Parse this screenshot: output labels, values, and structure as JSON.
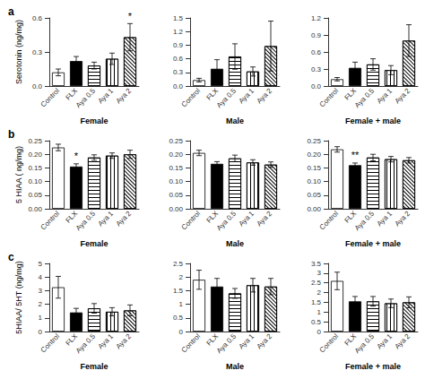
{
  "chart_data": [
    {
      "type": "bar",
      "title": "a",
      "xlabel": "Female",
      "ylabel": "Serotonin (ng/mg)",
      "categories": [
        "Control",
        "FLX",
        "Aya 0.5",
        "Aya 1",
        "Aya 2"
      ],
      "values": [
        0.12,
        0.22,
        0.18,
        0.24,
        0.43
      ],
      "errors": [
        0.03,
        0.04,
        0.03,
        0.05,
        0.12
      ],
      "colors": [
        "white",
        "black",
        "white",
        "white",
        "white"
      ],
      "ylim": [
        0.0,
        0.6
      ],
      "yticks": [
        {
          "value": 0.0,
          "label": "0.0"
        },
        0.3,
        0.6
      ],
      "grid": false,
      "annotations": [
        {
          "text": "*",
          "category": "Aya 2"
        }
      ]
    },
    {
      "type": "bar",
      "xlabel": "Male",
      "categories": [
        "Control",
        "FLX",
        "Aya 0.5",
        "Aya 1",
        "Aya 2"
      ],
      "values": [
        0.13,
        0.38,
        0.65,
        0.32,
        0.88
      ],
      "errors": [
        0.04,
        0.2,
        0.28,
        0.1,
        0.55
      ],
      "colors": [
        "white",
        "black",
        "white",
        "white",
        "white"
      ],
      "ylim": [
        0.0,
        1.5
      ],
      "yticks": [
        {
          "value": 0.0,
          "label": "0.0"
        },
        0.3,
        0.6,
        0.9,
        1.2,
        1.5
      ],
      "grid": false
    },
    {
      "type": "bar",
      "xlabel": "Female + male",
      "categories": [
        "Control",
        "FLX",
        "Aya 0.5",
        "Aya 1",
        "Aya 2"
      ],
      "values": [
        0.12,
        0.32,
        0.38,
        0.28,
        0.8
      ],
      "errors": [
        0.03,
        0.1,
        0.1,
        0.08,
        0.28
      ],
      "colors": [
        "white",
        "black",
        "white",
        "white",
        "white"
      ],
      "ylim": [
        0.0,
        1.2
      ],
      "yticks": [
        {
          "value": 0.0,
          "label": "0.0"
        },
        0.3,
        0.6,
        0.9,
        1.2
      ],
      "grid": false
    },
    {
      "type": "bar",
      "title": "b",
      "xlabel": "Female",
      "ylabel": "5 HIAA ( ng/mg)",
      "categories": [
        "Control",
        "FLX",
        "Aya 0.5",
        "Aya 1",
        "Aya 2"
      ],
      "values": [
        0.225,
        0.155,
        0.188,
        0.195,
        0.2
      ],
      "errors": [
        0.012,
        0.01,
        0.01,
        0.01,
        0.015
      ],
      "colors": [
        "white",
        "black",
        "white",
        "white",
        "white"
      ],
      "ylim": [
        0.0,
        0.25
      ],
      "yticks": [
        {
          "value": 0.0,
          "label": "0.00"
        },
        0.05,
        {
          "value": 0.1,
          "label": "0.10"
        },
        0.15,
        {
          "value": 0.2,
          "label": "0.20"
        },
        0.25
      ],
      "grid": false,
      "annotations": [
        {
          "text": "*",
          "category": "FLX"
        }
      ]
    },
    {
      "type": "bar",
      "xlabel": "Male",
      "categories": [
        "Control",
        "FLX",
        "Aya 0.5",
        "Aya 1",
        "Aya 2"
      ],
      "values": [
        0.205,
        0.165,
        0.185,
        0.17,
        0.162
      ],
      "errors": [
        0.01,
        0.008,
        0.012,
        0.01,
        0.01
      ],
      "colors": [
        "white",
        "black",
        "white",
        "white",
        "white"
      ],
      "ylim": [
        0.0,
        0.25
      ],
      "yticks": [
        {
          "value": 0.0,
          "label": "0.00"
        },
        0.05,
        {
          "value": 0.1,
          "label": "0.10"
        },
        0.15,
        {
          "value": 0.2,
          "label": "0.20"
        },
        0.25
      ],
      "grid": false
    },
    {
      "type": "bar",
      "xlabel": "Female + male",
      "categories": [
        "Control",
        "FLX",
        "Aya 0.5",
        "Aya 1",
        "Aya 2"
      ],
      "values": [
        0.218,
        0.16,
        0.188,
        0.182,
        0.178
      ],
      "errors": [
        0.01,
        0.008,
        0.012,
        0.01,
        0.01
      ],
      "colors": [
        "white",
        "black",
        "white",
        "white",
        "white"
      ],
      "ylim": [
        0.0,
        0.25
      ],
      "yticks": [
        {
          "value": 0.0,
          "label": "0.00"
        },
        0.05,
        {
          "value": 0.1,
          "label": "0.10"
        },
        0.15,
        {
          "value": 0.2,
          "label": "0.20"
        },
        0.25
      ],
      "grid": false,
      "annotations": [
        {
          "text": "**",
          "category": "FLX"
        }
      ]
    },
    {
      "type": "bar",
      "title": "c",
      "xlabel": "Female",
      "ylabel": "5HIAA/ 5HT (ng/mg)",
      "categories": [
        "Control",
        "FLX",
        "Aya 0.5",
        "Aya 1",
        "Aya 2"
      ],
      "values": [
        3.25,
        1.4,
        1.7,
        1.45,
        1.55
      ],
      "errors": [
        0.8,
        0.3,
        0.35,
        0.3,
        0.4
      ],
      "colors": [
        "white",
        "black",
        "white",
        "white",
        "white"
      ],
      "ylim": [
        0.0,
        5.0
      ],
      "yticks": [
        0,
        1,
        2,
        3,
        4,
        5
      ],
      "grid": false
    },
    {
      "type": "bar",
      "xlabel": "Male",
      "categories": [
        "Control",
        "FLX",
        "Aya 0.5",
        "Aya 1",
        "Aya 2"
      ],
      "values": [
        1.9,
        1.65,
        1.4,
        1.7,
        1.65
      ],
      "errors": [
        0.35,
        0.3,
        0.18,
        0.25,
        0.3
      ],
      "colors": [
        "white",
        "black",
        "white",
        "white",
        "white"
      ],
      "ylim": [
        0.0,
        2.5
      ],
      "yticks": [
        0,
        0.5,
        1,
        1.5,
        2,
        2.5
      ],
      "grid": false
    },
    {
      "type": "bar",
      "xlabel": "Female + male",
      "categories": [
        "Control",
        "FLX",
        "Aya 0.5",
        "Aya 1",
        "Aya 2"
      ],
      "values": [
        2.6,
        1.55,
        1.55,
        1.45,
        1.5
      ],
      "errors": [
        0.45,
        0.25,
        0.25,
        0.22,
        0.28
      ],
      "colors": [
        "white",
        "black",
        "white",
        "white",
        "white"
      ],
      "ylim": [
        0.0,
        3.5
      ],
      "yticks": [
        0,
        0.5,
        1,
        1.5,
        2,
        2.5,
        3,
        3.5
      ],
      "grid": false
    }
  ]
}
